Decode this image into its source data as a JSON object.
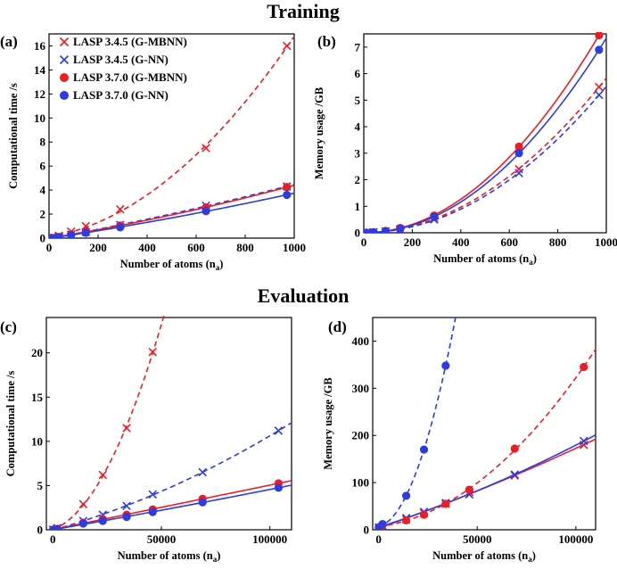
{
  "section_titles": {
    "training": "Training",
    "evaluation": "Evaluation"
  },
  "colors": {
    "red": "#ee1c24",
    "blue": "#2d3be3"
  },
  "legend": [
    {
      "label": "LASP 3.4.5 (G-MBNN)",
      "marker": "x",
      "color": "red"
    },
    {
      "label": "LASP 3.4.5 (G-NN)",
      "marker": "x",
      "color": "blue"
    },
    {
      "label": "LASP 3.7.0 (G-MBNN)",
      "marker": "dot",
      "color": "red"
    },
    {
      "label": "LASP 3.7.0 (G-NN)",
      "marker": "dot",
      "color": "blue"
    }
  ],
  "chart_data": [
    {
      "panel": "(a)",
      "type": "scatter",
      "xlabel": "Number of atoms (n",
      "xlabel_sub": "a",
      "xlabel_end": ")",
      "ylabel": "Computational time /s",
      "xlim": [
        0,
        1000
      ],
      "ylim": [
        0,
        17
      ],
      "xticks": [
        0,
        200,
        400,
        600,
        800,
        1000
      ],
      "yticks": [
        0,
        2,
        4,
        6,
        8,
        10,
        12,
        14,
        16
      ],
      "legend_position": "top-left",
      "series": [
        {
          "name": "LASP 3.4.5 (G-MBNN)",
          "marker": "x",
          "color": "red",
          "line": "dashed",
          "x": [
            1,
            10,
            40,
            90,
            150,
            290,
            640,
            970
          ],
          "y": [
            0.0,
            0.05,
            0.2,
            0.55,
            1.0,
            2.4,
            7.5,
            16.0
          ]
        },
        {
          "name": "LASP 3.4.5 (G-NN)",
          "marker": "x",
          "color": "blue",
          "line": "dashed",
          "x": [
            1,
            10,
            40,
            90,
            150,
            290,
            640,
            970
          ],
          "y": [
            0.0,
            0.02,
            0.1,
            0.3,
            0.5,
            1.1,
            2.7,
            4.3
          ]
        },
        {
          "name": "LASP 3.7.0 (G-MBNN)",
          "marker": "dot",
          "color": "red",
          "line": "solid",
          "x": [
            1,
            10,
            40,
            90,
            150,
            290,
            640,
            970
          ],
          "y": [
            0.0,
            0.02,
            0.1,
            0.3,
            0.55,
            1.05,
            2.55,
            4.25
          ]
        },
        {
          "name": "LASP 3.7.0 (G-NN)",
          "marker": "dot",
          "color": "blue",
          "line": "solid",
          "x": [
            1,
            10,
            40,
            90,
            150,
            290,
            640,
            970
          ],
          "y": [
            0.0,
            0.01,
            0.08,
            0.25,
            0.45,
            0.9,
            2.25,
            3.6
          ]
        }
      ]
    },
    {
      "panel": "(b)",
      "type": "scatter",
      "xlabel": "Number of atoms (n",
      "xlabel_sub": "a",
      "xlabel_end": ")",
      "ylabel": "Memory usage /GB",
      "xlim": [
        0,
        1000
      ],
      "ylim": [
        0,
        7.5
      ],
      "xticks": [
        0,
        200,
        400,
        600,
        800,
        1000
      ],
      "yticks": [
        0,
        1,
        2,
        3,
        4,
        5,
        6,
        7
      ],
      "series": [
        {
          "name": "LASP 3.4.5 (G-MBNN)",
          "marker": "x",
          "color": "red",
          "line": "dashed",
          "x": [
            1,
            10,
            40,
            90,
            150,
            290,
            640,
            970
          ],
          "y": [
            0.0,
            0.0,
            0.02,
            0.06,
            0.14,
            0.55,
            2.4,
            5.5
          ]
        },
        {
          "name": "LASP 3.4.5 (G-NN)",
          "marker": "x",
          "color": "blue",
          "line": "dashed",
          "x": [
            1,
            10,
            40,
            90,
            150,
            290,
            640,
            970
          ],
          "y": [
            0.0,
            0.0,
            0.02,
            0.05,
            0.12,
            0.5,
            2.25,
            5.2
          ]
        },
        {
          "name": "LASP 3.7.0 (G-MBNN)",
          "marker": "dot",
          "color": "red",
          "line": "solid",
          "x": [
            1,
            10,
            40,
            90,
            150,
            290,
            640,
            970
          ],
          "y": [
            0.0,
            0.0,
            0.02,
            0.07,
            0.18,
            0.65,
            3.25,
            7.45
          ]
        },
        {
          "name": "LASP 3.7.0 (G-NN)",
          "marker": "dot",
          "color": "blue",
          "line": "solid",
          "x": [
            1,
            10,
            40,
            90,
            150,
            290,
            640,
            970
          ],
          "y": [
            0.0,
            0.0,
            0.02,
            0.06,
            0.15,
            0.6,
            3.0,
            6.9
          ]
        }
      ]
    },
    {
      "panel": "(c)",
      "type": "scatter",
      "xlabel": "Number of atoms (n",
      "xlabel_sub": "a",
      "xlabel_end": ")",
      "ylabel": "Computational time /s",
      "xlim": [
        -3000,
        110000
      ],
      "ylim": [
        0,
        24
      ],
      "xticks": [
        0,
        50000,
        100000
      ],
      "yticks": [
        0,
        5,
        10,
        15,
        20
      ],
      "series": [
        {
          "name": "LASP 3.4.5 (G-MBNN)",
          "marker": "x",
          "color": "red",
          "line": "dashed",
          "x": [
            100,
            2000,
            14000,
            23000,
            34000,
            46000
          ],
          "y": [
            0.0,
            0.2,
            2.9,
            6.2,
            11.5,
            20.1
          ]
        },
        {
          "name": "LASP 3.4.5 (G-NN)",
          "marker": "x",
          "color": "blue",
          "line": "dashed",
          "x": [
            100,
            2000,
            14000,
            23000,
            34000,
            46000,
            69000,
            104000
          ],
          "y": [
            0.0,
            0.1,
            1.0,
            1.7,
            2.7,
            4.0,
            6.5,
            11.2
          ]
        },
        {
          "name": "LASP 3.7.0 (G-MBNN)",
          "marker": "dot",
          "color": "red",
          "line": "solid",
          "x": [
            100,
            2000,
            14000,
            23000,
            34000,
            46000,
            69000,
            104000
          ],
          "y": [
            0.0,
            0.1,
            0.8,
            1.2,
            1.7,
            2.3,
            3.5,
            5.25
          ]
        },
        {
          "name": "LASP 3.7.0 (G-NN)",
          "marker": "dot",
          "color": "blue",
          "line": "solid",
          "x": [
            100,
            2000,
            14000,
            23000,
            34000,
            46000,
            69000,
            104000
          ],
          "y": [
            0.0,
            0.05,
            0.7,
            1.0,
            1.45,
            2.0,
            3.1,
            4.75
          ]
        }
      ]
    },
    {
      "panel": "(d)",
      "type": "scatter",
      "xlabel": "Number of atoms (n",
      "xlabel_sub": "a",
      "xlabel_end": ")",
      "ylabel": "Memory usage /GB",
      "xlim": [
        -3000,
        110000
      ],
      "ylim": [
        0,
        450
      ],
      "xticks": [
        0,
        50000,
        100000
      ],
      "yticks": [
        0,
        100,
        200,
        300,
        400
      ],
      "series": [
        {
          "name": "LASP 3.4.5 (G-MBNN)",
          "marker": "x",
          "color": "red",
          "line": "solid",
          "x": [
            100,
            2000,
            14000,
            23000,
            34000,
            46000,
            69000,
            104000
          ],
          "y": [
            5,
            8,
            22,
            35,
            55,
            80,
            115,
            180
          ]
        },
        {
          "name": "LASP 3.4.5 (G-NN)",
          "marker": "x",
          "color": "blue",
          "line": "solid",
          "x": [
            100,
            2000,
            14000,
            23000,
            34000,
            46000,
            69000,
            104000
          ],
          "y": [
            5,
            8,
            25,
            38,
            57,
            75,
            117,
            188
          ]
        },
        {
          "name": "LASP 3.7.0 (G-MBNN)",
          "marker": "dot",
          "color": "red",
          "line": "dashed",
          "x": [
            100,
            2000,
            14000,
            23000,
            34000,
            46000,
            69000,
            104000
          ],
          "y": [
            5,
            10,
            20,
            32,
            55,
            85,
            172,
            345
          ]
        },
        {
          "name": "LASP 3.7.0 (G-NN)",
          "marker": "dot",
          "color": "blue",
          "line": "dashed",
          "x": [
            100,
            2000,
            14000,
            23000,
            34000
          ],
          "y": [
            5,
            12,
            72,
            170,
            348
          ]
        }
      ]
    }
  ]
}
